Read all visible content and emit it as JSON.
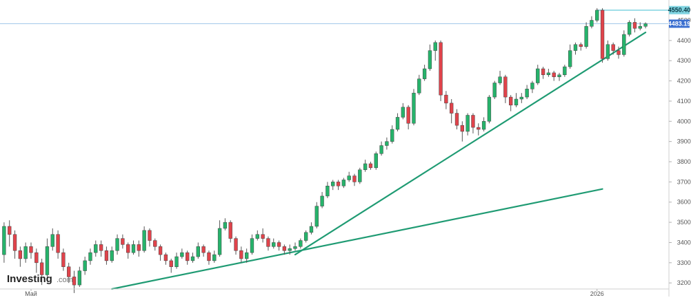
{
  "chart_data": {
    "type": "candlestick",
    "title": "",
    "xlabel": "",
    "ylabel": "",
    "ylim": [
      3170,
      4580
    ],
    "grid": false,
    "y_ticks": [
      "3200.00",
      "3300.00",
      "3400.00",
      "3500.00",
      "3600.00",
      "3700.00",
      "3800.00",
      "3900.00",
      "4000.00",
      "4100.00",
      "4200.00",
      "4300.00",
      "4400.00",
      "4500.00"
    ],
    "x_labels": [
      {
        "label": "Май",
        "index": 5
      },
      {
        "label": "2026",
        "index": 110
      }
    ],
    "price_badges": [
      {
        "value": "4550.40",
        "kind": "high",
        "bg": "#7fd3e0",
        "fg": "#0b3b47"
      },
      {
        "value": "4483.19",
        "kind": "last",
        "bg": "#3b6fd0",
        "fg": "#ffffff"
      }
    ],
    "trendlines": [
      {
        "from": [
          20,
          3170
        ],
        "to": [
          111,
          3665
        ]
      },
      {
        "from": [
          54,
          3340
        ],
        "to": [
          119,
          4440
        ]
      }
    ],
    "colors": {
      "up": "#26b36b",
      "down": "#e0434b",
      "trend": "#1f9b73",
      "guide": "#9ec4ea"
    },
    "watermark": {
      "brand": "Investing",
      "suffix": ".com"
    },
    "candles": [
      [
        3340,
        3480,
        3500,
        3300
      ],
      [
        3480,
        3440,
        3510,
        3380
      ],
      [
        3440,
        3360,
        3460,
        3320
      ],
      [
        3360,
        3320,
        3380,
        3280
      ],
      [
        3320,
        3380,
        3400,
        3300
      ],
      [
        3380,
        3350,
        3400,
        3320
      ],
      [
        3350,
        3300,
        3370,
        3250
      ],
      [
        3300,
        3240,
        3320,
        3190
      ],
      [
        3240,
        3380,
        3420,
        3230
      ],
      [
        3380,
        3440,
        3470,
        3360
      ],
      [
        3440,
        3350,
        3460,
        3320
      ],
      [
        3350,
        3280,
        3370,
        3260
      ],
      [
        3280,
        3230,
        3300,
        3200
      ],
      [
        3230,
        3190,
        3260,
        3150
      ],
      [
        3190,
        3260,
        3280,
        3180
      ],
      [
        3260,
        3310,
        3330,
        3240
      ],
      [
        3310,
        3350,
        3370,
        3290
      ],
      [
        3350,
        3390,
        3410,
        3330
      ],
      [
        3390,
        3360,
        3410,
        3330
      ],
      [
        3360,
        3310,
        3380,
        3290
      ],
      [
        3310,
        3360,
        3380,
        3300
      ],
      [
        3360,
        3420,
        3440,
        3340
      ],
      [
        3420,
        3390,
        3440,
        3370
      ],
      [
        3390,
        3350,
        3400,
        3320
      ],
      [
        3350,
        3390,
        3410,
        3340
      ],
      [
        3390,
        3360,
        3410,
        3330
      ],
      [
        3360,
        3460,
        3480,
        3350
      ],
      [
        3460,
        3410,
        3470,
        3380
      ],
      [
        3410,
        3380,
        3420,
        3360
      ],
      [
        3380,
        3340,
        3390,
        3310
      ],
      [
        3340,
        3310,
        3350,
        3290
      ],
      [
        3310,
        3280,
        3320,
        3250
      ],
      [
        3280,
        3330,
        3350,
        3270
      ],
      [
        3330,
        3350,
        3370,
        3320
      ],
      [
        3350,
        3310,
        3360,
        3290
      ],
      [
        3310,
        3330,
        3350,
        3300
      ],
      [
        3330,
        3380,
        3400,
        3320
      ],
      [
        3380,
        3350,
        3390,
        3330
      ],
      [
        3350,
        3310,
        3360,
        3290
      ],
      [
        3310,
        3340,
        3360,
        3300
      ],
      [
        3340,
        3470,
        3510,
        3330
      ],
      [
        3470,
        3500,
        3520,
        3460
      ],
      [
        3500,
        3420,
        3510,
        3400
      ],
      [
        3420,
        3360,
        3430,
        3340
      ],
      [
        3360,
        3320,
        3380,
        3300
      ],
      [
        3320,
        3350,
        3370,
        3300
      ],
      [
        3350,
        3420,
        3440,
        3340
      ],
      [
        3420,
        3440,
        3460,
        3410
      ],
      [
        3440,
        3420,
        3470,
        3400
      ],
      [
        3420,
        3380,
        3430,
        3360
      ],
      [
        3380,
        3400,
        3420,
        3370
      ],
      [
        3400,
        3380,
        3410,
        3360
      ],
      [
        3380,
        3360,
        3390,
        3340
      ],
      [
        3360,
        3370,
        3390,
        3340
      ],
      [
        3370,
        3380,
        3400,
        3360
      ],
      [
        3380,
        3410,
        3420,
        3370
      ],
      [
        3410,
        3450,
        3460,
        3400
      ],
      [
        3450,
        3480,
        3500,
        3440
      ],
      [
        3480,
        3580,
        3600,
        3470
      ],
      [
        3580,
        3630,
        3650,
        3570
      ],
      [
        3630,
        3680,
        3700,
        3620
      ],
      [
        3680,
        3700,
        3710,
        3660
      ],
      [
        3700,
        3680,
        3710,
        3660
      ],
      [
        3680,
        3710,
        3720,
        3670
      ],
      [
        3710,
        3730,
        3750,
        3700
      ],
      [
        3730,
        3700,
        3740,
        3680
      ],
      [
        3700,
        3760,
        3770,
        3690
      ],
      [
        3760,
        3790,
        3810,
        3750
      ],
      [
        3790,
        3770,
        3800,
        3760
      ],
      [
        3770,
        3840,
        3850,
        3760
      ],
      [
        3840,
        3880,
        3900,
        3830
      ],
      [
        3880,
        3900,
        3920,
        3860
      ],
      [
        3900,
        3960,
        3980,
        3890
      ],
      [
        3960,
        4020,
        4040,
        3950
      ],
      [
        4020,
        4070,
        4090,
        4010
      ],
      [
        4070,
        3990,
        4080,
        3960
      ],
      [
        3990,
        4140,
        4160,
        3980
      ],
      [
        4140,
        4210,
        4230,
        4130
      ],
      [
        4210,
        4260,
        4280,
        4200
      ],
      [
        4260,
        4350,
        4380,
        4250
      ],
      [
        4350,
        4390,
        4400,
        4300
      ],
      [
        4390,
        4130,
        4400,
        4100
      ],
      [
        4130,
        4090,
        4150,
        4060
      ],
      [
        4090,
        4040,
        4110,
        3990
      ],
      [
        4040,
        3980,
        4060,
        3960
      ],
      [
        3980,
        3950,
        4000,
        3900
      ],
      [
        3950,
        4030,
        4040,
        3930
      ],
      [
        4030,
        3970,
        4040,
        3940
      ],
      [
        3970,
        3960,
        3990,
        3930
      ],
      [
        3960,
        4000,
        4020,
        3950
      ],
      [
        4000,
        4120,
        4130,
        3990
      ],
      [
        4120,
        4190,
        4200,
        4110
      ],
      [
        4190,
        4220,
        4250,
        4180
      ],
      [
        4220,
        4120,
        4230,
        4090
      ],
      [
        4120,
        4080,
        4130,
        4050
      ],
      [
        4080,
        4110,
        4140,
        4070
      ],
      [
        4110,
        4120,
        4140,
        4090
      ],
      [
        4120,
        4160,
        4180,
        4110
      ],
      [
        4160,
        4190,
        4200,
        4140
      ],
      [
        4190,
        4260,
        4280,
        4180
      ],
      [
        4260,
        4230,
        4270,
        4210
      ],
      [
        4230,
        4240,
        4260,
        4220
      ],
      [
        4240,
        4220,
        4250,
        4200
      ],
      [
        4220,
        4230,
        4240,
        4200
      ],
      [
        4230,
        4270,
        4280,
        4220
      ],
      [
        4270,
        4350,
        4380,
        4260
      ],
      [
        4350,
        4380,
        4390,
        4330
      ],
      [
        4380,
        4370,
        4390,
        4350
      ],
      [
        4370,
        4470,
        4490,
        4360
      ],
      [
        4470,
        4500,
        4520,
        4460
      ],
      [
        4500,
        4550,
        4560,
        4490
      ],
      [
        4550,
        4310,
        4560,
        4290
      ],
      [
        4310,
        4380,
        4400,
        4300
      ],
      [
        4380,
        4350,
        4390,
        4330
      ],
      [
        4350,
        4330,
        4370,
        4310
      ],
      [
        4330,
        4430,
        4450,
        4320
      ],
      [
        4430,
        4490,
        4500,
        4420
      ],
      [
        4490,
        4460,
        4510,
        4440
      ],
      [
        4460,
        4470,
        4490,
        4450
      ],
      [
        4470,
        4483,
        4490,
        4460
      ]
    ]
  }
}
